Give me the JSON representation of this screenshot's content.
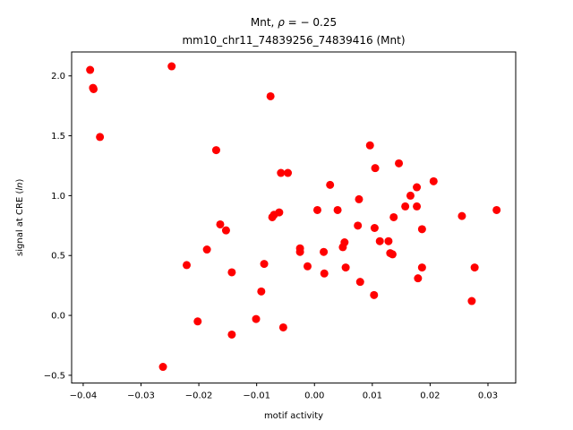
{
  "chart_data": {
    "type": "scatter",
    "title_line1_prefix": "Mnt, ",
    "title_line1_rho": "ρ",
    "title_line1_suffix": " = − 0.25",
    "title_line2": "mm10_chr11_74839256_74839416 (Mnt)",
    "xlabel": "motif activity",
    "ylabel_prefix": "signal at CRE (",
    "ylabel_italic": "ln",
    "ylabel_suffix": ")",
    "xlim": [
      -0.042,
      0.0348
    ],
    "ylim": [
      -0.565,
      2.2
    ],
    "xticks": [
      -0.04,
      -0.03,
      -0.02,
      -0.01,
      0.0,
      0.01,
      0.02,
      0.03
    ],
    "xtick_labels": [
      "−0.04",
      "−0.03",
      "−0.02",
      "−0.01",
      "0.00",
      "0.01",
      "0.02",
      "0.03"
    ],
    "yticks": [
      -0.5,
      0.0,
      0.5,
      1.0,
      1.5,
      2.0
    ],
    "ytick_labels": [
      "−0.5",
      "0.0",
      "0.5",
      "1.0",
      "1.5",
      "2.0"
    ],
    "grid": false,
    "marker_color": "#ff0000",
    "points": [
      {
        "x": -0.0388,
        "y": 2.05
      },
      {
        "x": -0.0383,
        "y": 1.9
      },
      {
        "x": -0.0382,
        "y": 1.89
      },
      {
        "x": -0.0371,
        "y": 1.49
      },
      {
        "x": -0.0247,
        "y": 2.08
      },
      {
        "x": -0.0262,
        "y": -0.43
      },
      {
        "x": -0.0221,
        "y": 0.42
      },
      {
        "x": -0.0202,
        "y": -0.05
      },
      {
        "x": -0.0186,
        "y": 0.55
      },
      {
        "x": -0.017,
        "y": 1.38
      },
      {
        "x": -0.0163,
        "y": 0.76
      },
      {
        "x": -0.0153,
        "y": 0.71
      },
      {
        "x": -0.0143,
        "y": 0.36
      },
      {
        "x": -0.0143,
        "y": -0.16
      },
      {
        "x": -0.0101,
        "y": -0.03
      },
      {
        "x": -0.0092,
        "y": 0.2
      },
      {
        "x": -0.0087,
        "y": 0.43
      },
      {
        "x": -0.0076,
        "y": 1.83
      },
      {
        "x": -0.0073,
        "y": 0.82
      },
      {
        "x": -0.007,
        "y": 0.84
      },
      {
        "x": -0.0061,
        "y": 0.86
      },
      {
        "x": -0.0058,
        "y": 1.19
      },
      {
        "x": -0.0054,
        "y": -0.1
      },
      {
        "x": -0.0046,
        "y": 1.19
      },
      {
        "x": -0.0025,
        "y": 0.56
      },
      {
        "x": -0.0025,
        "y": 0.53
      },
      {
        "x": -0.0012,
        "y": 0.41
      },
      {
        "x": 0.0005,
        "y": 0.88
      },
      {
        "x": 0.0016,
        "y": 0.53
      },
      {
        "x": 0.0017,
        "y": 0.35
      },
      {
        "x": 0.0027,
        "y": 1.09
      },
      {
        "x": 0.004,
        "y": 0.88
      },
      {
        "x": 0.0049,
        "y": 0.57
      },
      {
        "x": 0.0052,
        "y": 0.61
      },
      {
        "x": 0.0054,
        "y": 0.4
      },
      {
        "x": 0.0075,
        "y": 0.75
      },
      {
        "x": 0.0077,
        "y": 0.97
      },
      {
        "x": 0.0079,
        "y": 0.28
      },
      {
        "x": 0.0096,
        "y": 1.42
      },
      {
        "x": 0.0103,
        "y": 0.17
      },
      {
        "x": 0.0105,
        "y": 1.23
      },
      {
        "x": 0.0104,
        "y": 0.73
      },
      {
        "x": 0.0113,
        "y": 0.62
      },
      {
        "x": 0.0128,
        "y": 0.62
      },
      {
        "x": 0.0131,
        "y": 0.52
      },
      {
        "x": 0.0135,
        "y": 0.51
      },
      {
        "x": 0.0137,
        "y": 0.82
      },
      {
        "x": 0.0146,
        "y": 1.27
      },
      {
        "x": 0.0157,
        "y": 0.91
      },
      {
        "x": 0.0166,
        "y": 1.0
      },
      {
        "x": 0.0177,
        "y": 1.07
      },
      {
        "x": 0.0177,
        "y": 0.91
      },
      {
        "x": 0.0179,
        "y": 0.31
      },
      {
        "x": 0.0186,
        "y": 0.72
      },
      {
        "x": 0.0186,
        "y": 0.4
      },
      {
        "x": 0.0206,
        "y": 1.12
      },
      {
        "x": 0.0255,
        "y": 0.83
      },
      {
        "x": 0.0272,
        "y": 0.12
      },
      {
        "x": 0.0277,
        "y": 0.4
      },
      {
        "x": 0.0315,
        "y": 0.88
      }
    ]
  }
}
